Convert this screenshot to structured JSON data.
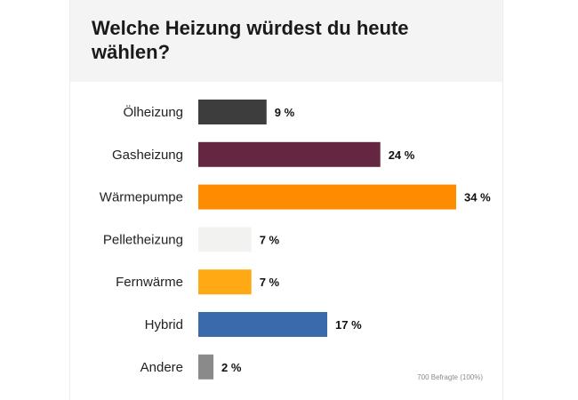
{
  "title": "Welche Heizung würdest du heute wählen?",
  "note": "700 Befragte (100%)",
  "chart_data": {
    "type": "bar",
    "orientation": "horizontal",
    "title": "Welche Heizung würdest du heute wählen?",
    "categories": [
      "Ölheizung",
      "Gasheizung",
      "Wärmepumpe",
      "Pelletheizung",
      "Fernwärme",
      "Hybrid",
      "Andere"
    ],
    "values": [
      9,
      24,
      34,
      7,
      7,
      17,
      2
    ],
    "value_labels": [
      "9 %",
      "24 %",
      "34 %",
      "7 %",
      "7 %",
      "17 %",
      "2 %"
    ],
    "colors": [
      "#3d3d3d",
      "#652641",
      "#ff8c00",
      "#f2f2f0",
      "#ffaa14",
      "#3a6aab",
      "#8a8a8a"
    ],
    "xlim": [
      0,
      34
    ],
    "grid": false,
    "legend": "none"
  }
}
